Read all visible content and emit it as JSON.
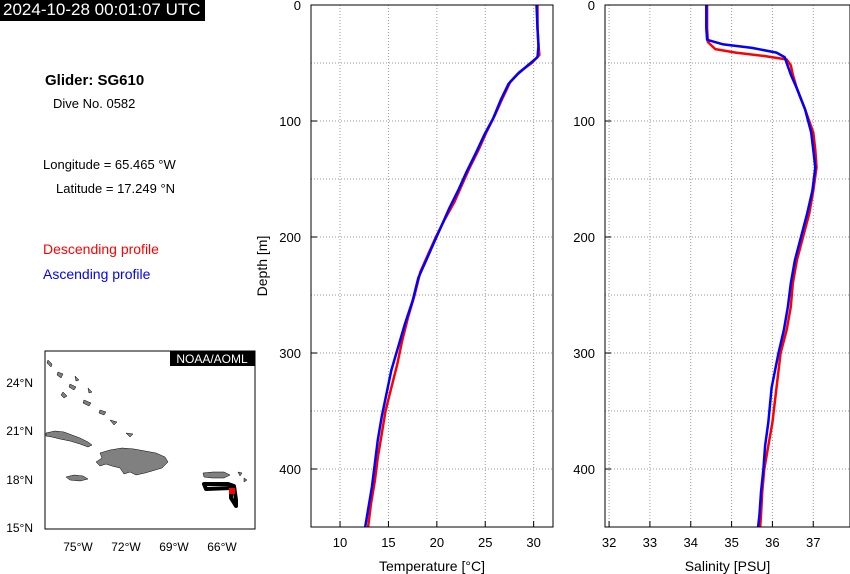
{
  "timestamp": "2024-10-28 00:01:07 UTC",
  "info": {
    "glider": "Glider: SG610",
    "dive": "Dive No. 0582",
    "longitude": "Longitude = 65.465 °W",
    "latitude": "Latitude = 17.249 °N",
    "descending_label": "Descending profile",
    "ascending_label": "Ascending profile"
  },
  "colors": {
    "descending": "#ff0000",
    "ascending": "#0000ff",
    "land": "#808080",
    "track": "#000000"
  },
  "map": {
    "credit": "NOAA/AOML",
    "lat_labels": [
      "24°N",
      "21°N",
      "18°N",
      "15°N"
    ],
    "lon_labels": [
      "75°W",
      "72°W",
      "69°W",
      "66°W"
    ],
    "extent": {
      "lon": [
        -78,
        -64.5
      ],
      "lat": [
        15,
        26
      ]
    },
    "glider_position": {
      "lon": -65.465,
      "lat": 17.249
    }
  },
  "chart_data": [
    {
      "type": "line",
      "xlabel": "Temperature [°C]",
      "ylabel": "Depth [m]",
      "xlim": [
        7,
        32
      ],
      "ylim": [
        450,
        0
      ],
      "xticks": [
        10,
        15,
        20,
        25,
        30
      ],
      "yticks": [
        0,
        100,
        200,
        300,
        400
      ],
      "grid": true,
      "series": [
        {
          "name": "Descending profile",
          "color": "#ff0000",
          "points": [
            [
              30.4,
              0
            ],
            [
              30.4,
              20
            ],
            [
              30.5,
              35
            ],
            [
              30.6,
              43
            ],
            [
              29.8,
              50
            ],
            [
              28.5,
              58
            ],
            [
              27.6,
              66
            ],
            [
              26.8,
              80
            ],
            [
              26.0,
              95
            ],
            [
              25.1,
              110
            ],
            [
              24.3,
              125
            ],
            [
              23.4,
              140
            ],
            [
              22.6,
              155
            ],
            [
              21.8,
              170
            ],
            [
              20.8,
              185
            ],
            [
              19.9,
              200
            ],
            [
              19.1,
              215
            ],
            [
              18.3,
              230
            ],
            [
              17.7,
              250
            ],
            [
              17.0,
              270
            ],
            [
              16.4,
              290
            ],
            [
              15.9,
              310
            ],
            [
              15.3,
              330
            ],
            [
              14.7,
              350
            ],
            [
              14.3,
              370
            ],
            [
              13.9,
              390
            ],
            [
              13.6,
              410
            ],
            [
              13.2,
              430
            ],
            [
              12.9,
              450
            ]
          ]
        },
        {
          "name": "Ascending profile",
          "color": "#0000ff",
          "points": [
            [
              30.3,
              0
            ],
            [
              30.4,
              20
            ],
            [
              30.5,
              35
            ],
            [
              30.4,
              45
            ],
            [
              29.4,
              52
            ],
            [
              28.3,
              60
            ],
            [
              27.4,
              68
            ],
            [
              26.6,
              82
            ],
            [
              25.8,
              98
            ],
            [
              24.9,
              112
            ],
            [
              24.0,
              128
            ],
            [
              23.0,
              145
            ],
            [
              22.2,
              160
            ],
            [
              21.3,
              175
            ],
            [
              20.5,
              190
            ],
            [
              19.7,
              205
            ],
            [
              18.9,
              220
            ],
            [
              18.1,
              235
            ],
            [
              17.5,
              255
            ],
            [
              16.7,
              275
            ],
            [
              16.0,
              295
            ],
            [
              15.3,
              315
            ],
            [
              14.8,
              335
            ],
            [
              14.3,
              355
            ],
            [
              13.9,
              375
            ],
            [
              13.6,
              395
            ],
            [
              13.3,
              415
            ],
            [
              12.9,
              435
            ],
            [
              12.6,
              450
            ]
          ]
        }
      ]
    },
    {
      "type": "line",
      "xlabel": "Salinity [PSU]",
      "ylabel": "",
      "xlim": [
        31.9,
        37.9
      ],
      "ylim": [
        450,
        0
      ],
      "xticks": [
        32,
        33,
        34,
        35,
        36,
        37
      ],
      "yticks": [
        0,
        100,
        200,
        300,
        400
      ],
      "grid": true,
      "series": [
        {
          "name": "Descending profile",
          "color": "#ff0000",
          "points": [
            [
              34.4,
              0
            ],
            [
              34.4,
              20
            ],
            [
              34.42,
              32
            ],
            [
              34.6,
              38
            ],
            [
              35.1,
              41
            ],
            [
              35.8,
              44
            ],
            [
              36.35,
              47
            ],
            [
              36.45,
              52
            ],
            [
              36.5,
              60
            ],
            [
              36.6,
              72
            ],
            [
              36.8,
              90
            ],
            [
              37.0,
              110
            ],
            [
              37.05,
              125
            ],
            [
              37.08,
              140
            ],
            [
              37.0,
              160
            ],
            [
              36.9,
              180
            ],
            [
              36.75,
              200
            ],
            [
              36.6,
              220
            ],
            [
              36.5,
              240
            ],
            [
              36.45,
              260
            ],
            [
              36.35,
              280
            ],
            [
              36.2,
              300
            ],
            [
              36.1,
              330
            ],
            [
              36.0,
              360
            ],
            [
              35.9,
              380
            ],
            [
              35.8,
              400
            ],
            [
              35.75,
              420
            ],
            [
              35.72,
              440
            ],
            [
              35.7,
              450
            ]
          ]
        },
        {
          "name": "Ascending profile",
          "color": "#0000ff",
          "points": [
            [
              34.38,
              0
            ],
            [
              34.38,
              20
            ],
            [
              34.4,
              30
            ],
            [
              34.8,
              34
            ],
            [
              35.5,
              37
            ],
            [
              36.1,
              41
            ],
            [
              36.3,
              45
            ],
            [
              36.35,
              50
            ],
            [
              36.45,
              60
            ],
            [
              36.6,
              72
            ],
            [
              36.8,
              90
            ],
            [
              36.95,
              110
            ],
            [
              37.0,
              125
            ],
            [
              37.05,
              140
            ],
            [
              36.98,
              160
            ],
            [
              36.85,
              180
            ],
            [
              36.7,
              200
            ],
            [
              36.55,
              220
            ],
            [
              36.45,
              240
            ],
            [
              36.38,
              260
            ],
            [
              36.28,
              280
            ],
            [
              36.15,
              300
            ],
            [
              35.98,
              330
            ],
            [
              35.9,
              360
            ],
            [
              35.82,
              380
            ],
            [
              35.78,
              400
            ],
            [
              35.72,
              420
            ],
            [
              35.68,
              440
            ],
            [
              35.65,
              450
            ]
          ]
        }
      ]
    }
  ]
}
